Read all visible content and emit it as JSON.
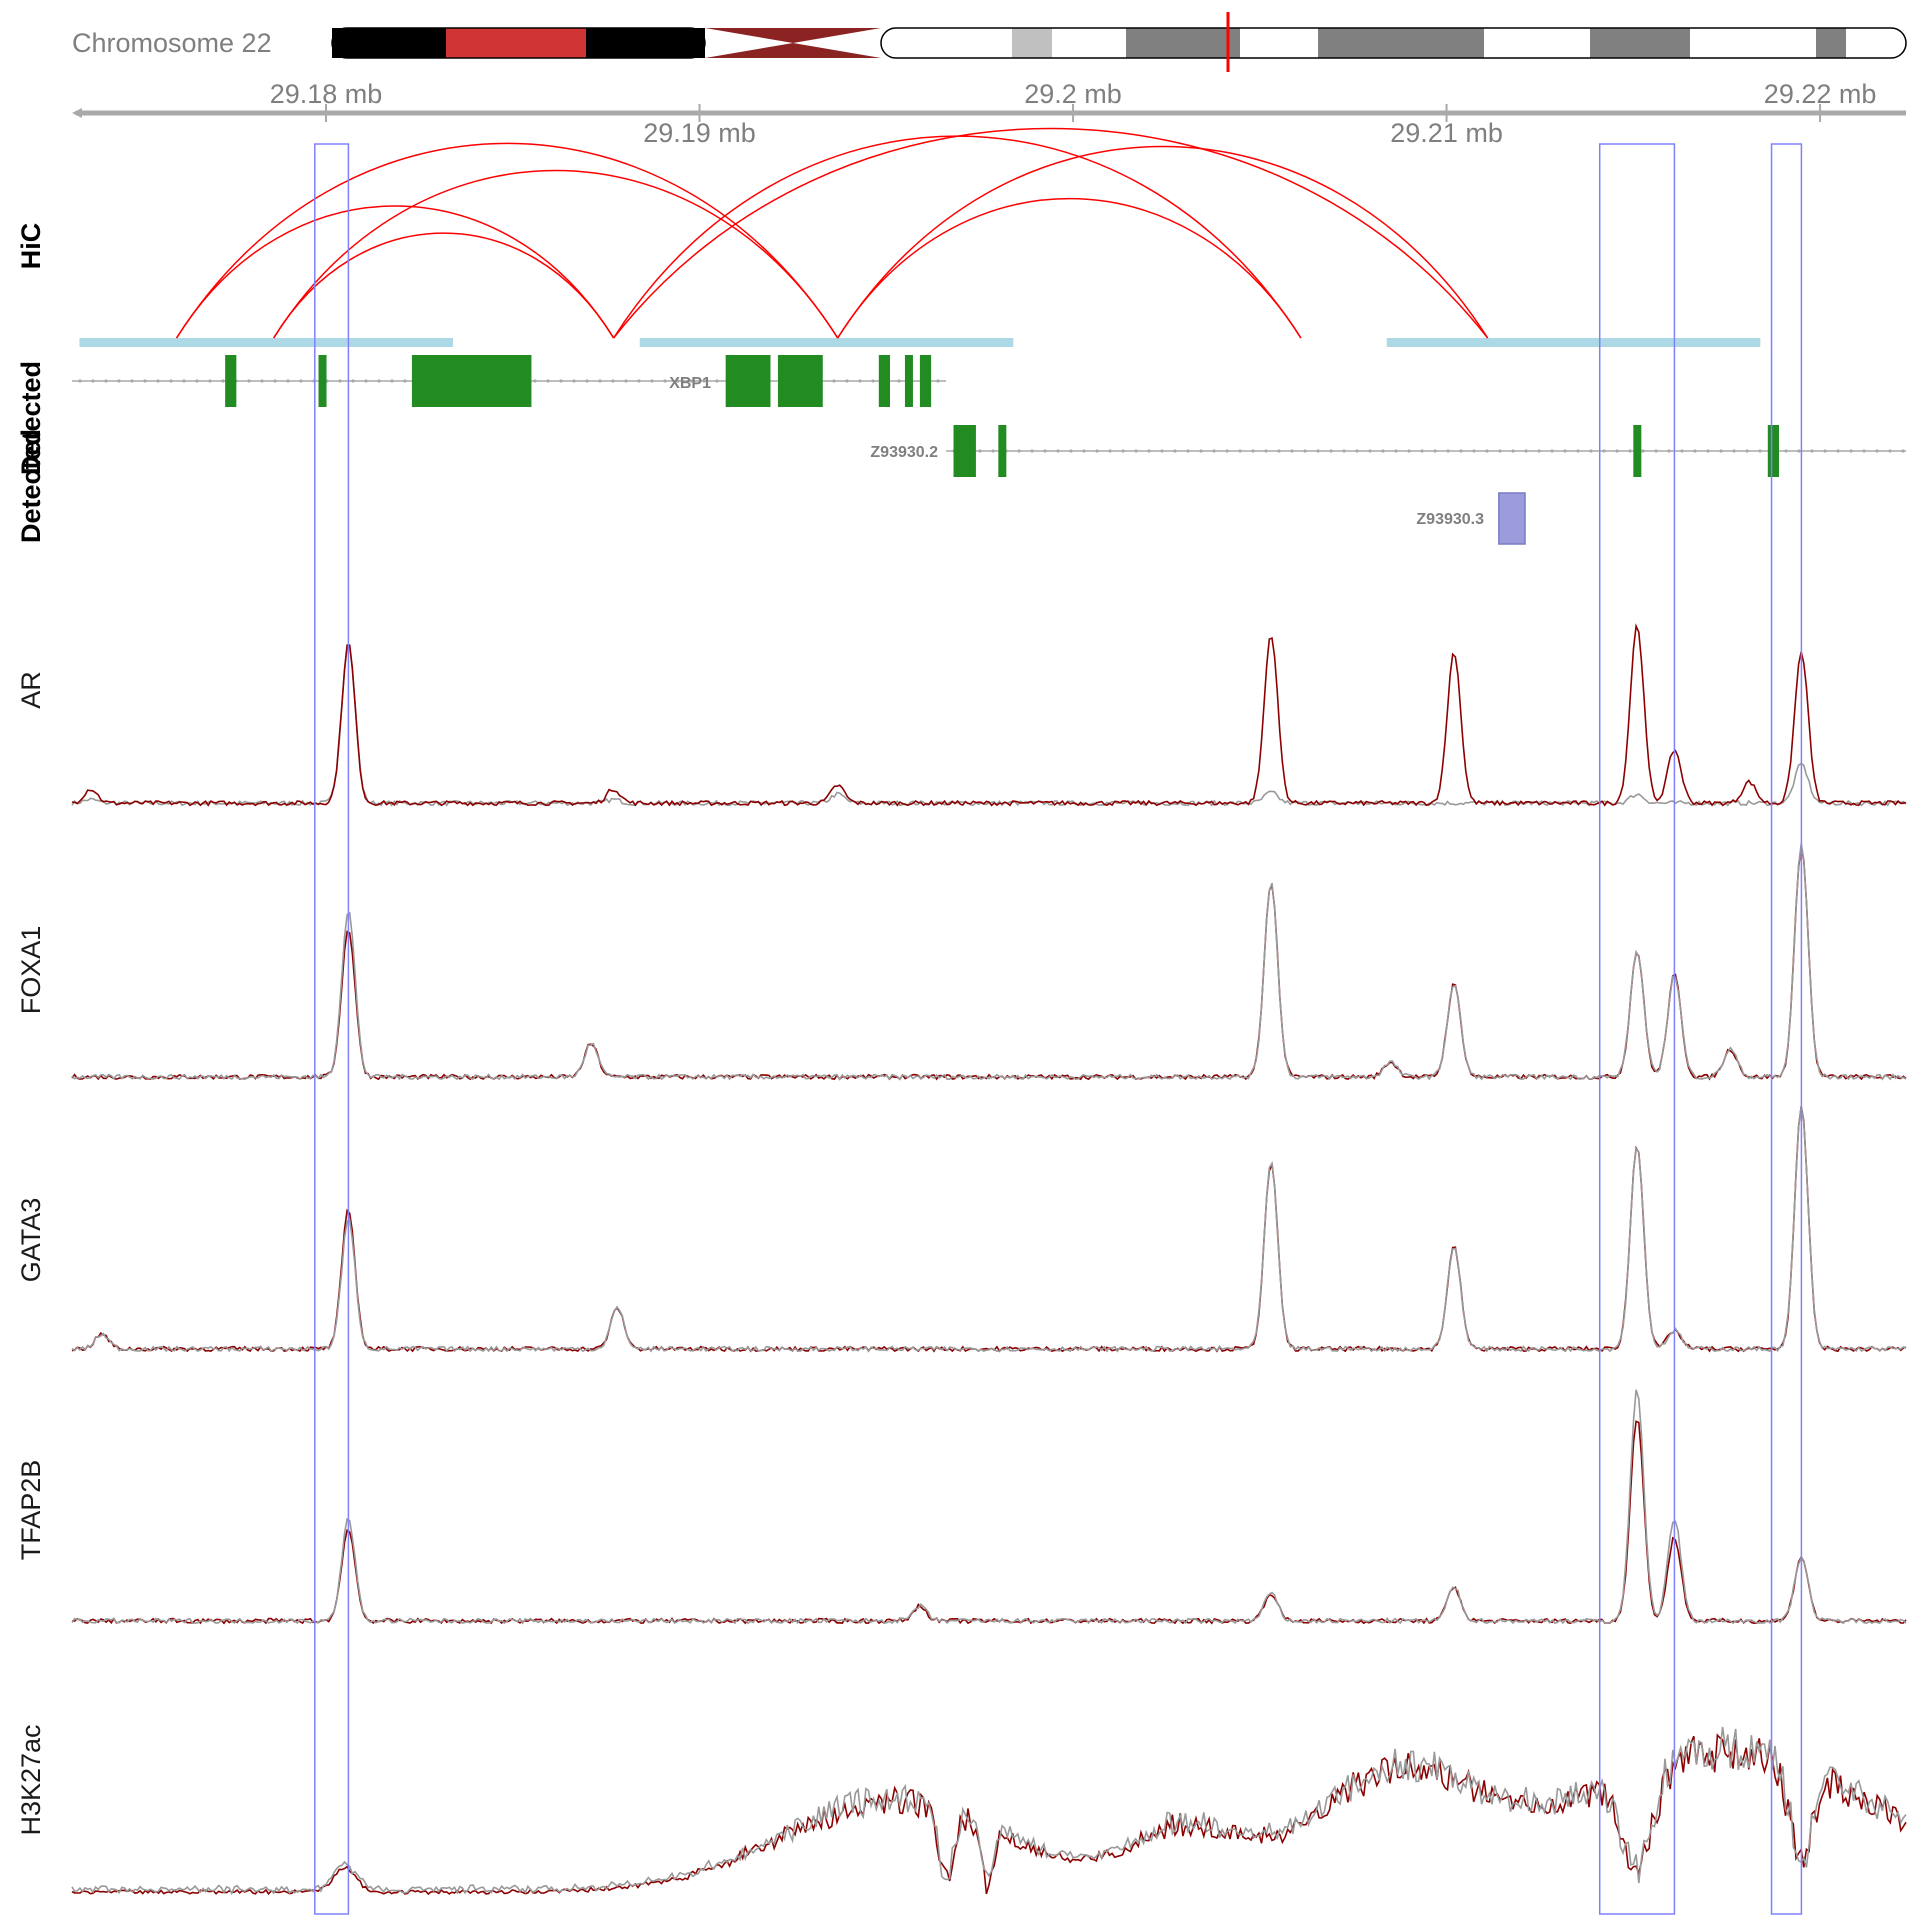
{
  "ideogram": {
    "label": "Chromosome 22",
    "bands": [
      {
        "stain": "gpos100",
        "color": "#000000"
      },
      {
        "stain": "gpos100-red",
        "color": "#d03434"
      },
      {
        "stain": "gpos100",
        "color": "#000000"
      },
      {
        "stain": "acen",
        "color": "#8b2323"
      },
      {
        "stain": "gneg",
        "color": "#ffffff"
      },
      {
        "stain": "gpos25",
        "color": "#c0c0c0"
      },
      {
        "stain": "gneg",
        "color": "#ffffff"
      },
      {
        "stain": "gpos50",
        "color": "#808080"
      },
      {
        "stain": "gneg",
        "color": "#ffffff"
      },
      {
        "stain": "gpos50",
        "color": "#808080"
      },
      {
        "stain": "gneg",
        "color": "#ffffff"
      },
      {
        "stain": "gpos50",
        "color": "#808080"
      },
      {
        "stain": "gneg",
        "color": "#ffffff"
      },
      {
        "stain": "gpos50",
        "color": "#808080"
      },
      {
        "stain": "gneg",
        "color": "#ffffff"
      }
    ],
    "marker_color": "#ff0000"
  },
  "genome_axis": {
    "range_mb": [
      29.1732,
      29.2223
    ],
    "top_ticks": [
      {
        "value": 29.18,
        "label": "29.18 mb"
      },
      {
        "value": 29.2,
        "label": "29.2 mb"
      },
      {
        "value": 29.22,
        "label": "29.22 mb"
      }
    ],
    "bottom_ticks": [
      {
        "value": 29.19,
        "label": "29.19 mb"
      },
      {
        "value": 29.21,
        "label": "29.21 mb"
      }
    ]
  },
  "hic": {
    "label": "HiC",
    "arc_color": "#ff0000",
    "anchor_color": "#add8e6",
    "anchor_regions_mb": [
      [
        29.1734,
        29.1834
      ],
      [
        29.1884,
        29.1984
      ],
      [
        29.2084,
        29.2184
      ]
    ],
    "links_mb": [
      [
        29.176,
        29.1937
      ],
      [
        29.176,
        29.1877
      ],
      [
        29.1786,
        29.1937
      ],
      [
        29.1786,
        29.1877
      ],
      [
        29.1877,
        29.2061
      ],
      [
        29.1877,
        29.2111
      ],
      [
        29.1937,
        29.2061
      ],
      [
        29.1937,
        29.2111
      ]
    ]
  },
  "genes": {
    "track_label": "Detected",
    "track_label_2": "Detected",
    "exon_color": "#228b22",
    "intron_color": "#a9a9a9",
    "transcripts": [
      {
        "name": "",
        "label_shown": false,
        "start": 29.1732,
        "end": 29.1966,
        "exons": [
          [
            29.1773,
            29.1776
          ],
          [
            29.1798,
            29.18
          ],
          [
            29.1823,
            29.1855
          ]
        ]
      },
      {
        "name": "XBP1",
        "label_shown": true,
        "start": 29.1732,
        "end": 29.1966,
        "exons": [
          [
            29.1907,
            29.1919
          ],
          [
            29.1921,
            29.1933
          ],
          [
            29.1948,
            29.1951
          ],
          [
            29.1955,
            29.1957
          ],
          [
            29.1959,
            29.1962
          ]
        ]
      },
      {
        "name": "Z93930.2",
        "label_shown": true,
        "start": 29.1966,
        "end": 29.2223,
        "exons": [
          [
            29.1968,
            29.1974
          ],
          [
            29.198,
            29.1982
          ],
          [
            29.215,
            29.2152
          ],
          [
            29.2186,
            29.2189
          ]
        ]
      }
    ],
    "features": [
      {
        "name": "Z93930.3",
        "start": 29.2114,
        "end": 29.2121,
        "color": "#9c9cdd"
      }
    ]
  },
  "coverage_tracks": [
    {
      "name": "AR",
      "ymax": 1.0,
      "peaks_mb": [
        [
          29.1806,
          0.9,
          0.9
        ],
        [
          29.2053,
          0.95,
          0.06
        ],
        [
          29.2102,
          0.85,
          0.0
        ],
        [
          29.2151,
          1.0,
          0.05
        ],
        [
          29.2161,
          0.3,
          0.0
        ],
        [
          29.2195,
          0.85,
          0.22
        ],
        [
          29.2181,
          0.12,
          0.0
        ],
        [
          29.1937,
          0.1,
          0.05
        ],
        [
          29.1877,
          0.08,
          0.02
        ],
        [
          29.1737,
          0.08,
          0.02
        ]
      ]
    },
    {
      "name": "FOXA1",
      "ymax": 1.0,
      "peaks_mb": [
        [
          29.1806,
          0.8,
          0.9
        ],
        [
          29.1871,
          0.18,
          0.18
        ],
        [
          29.2053,
          1.05,
          1.05
        ],
        [
          29.2102,
          0.5,
          0.5
        ],
        [
          29.2151,
          0.68,
          0.68
        ],
        [
          29.2161,
          0.55,
          0.55
        ],
        [
          29.2195,
          1.25,
          1.25
        ],
        [
          29.2176,
          0.15,
          0.15
        ],
        [
          29.2085,
          0.08,
          0.08
        ]
      ]
    },
    {
      "name": "GATA3",
      "ymax": 1.0,
      "peaks_mb": [
        [
          29.1806,
          0.75,
          0.7
        ],
        [
          29.1878,
          0.22,
          0.22
        ],
        [
          29.2053,
          1.0,
          1.0
        ],
        [
          29.2102,
          0.55,
          0.55
        ],
        [
          29.2151,
          1.1,
          1.1
        ],
        [
          29.2161,
          0.1,
          0.1
        ],
        [
          29.2195,
          1.3,
          1.3
        ],
        [
          29.174,
          0.08,
          0.08
        ]
      ]
    },
    {
      "name": "TFAP2B",
      "ymax": 1.0,
      "peaks_mb": [
        [
          29.1806,
          0.5,
          0.55
        ],
        [
          29.2053,
          0.15,
          0.15
        ],
        [
          29.2102,
          0.18,
          0.18
        ],
        [
          29.2151,
          1.1,
          1.25
        ],
        [
          29.2161,
          0.45,
          0.55
        ],
        [
          29.2195,
          0.35,
          0.35
        ],
        [
          29.1959,
          0.08,
          0.08
        ]
      ]
    },
    {
      "name": "H3K27ac",
      "ymax": 1.0,
      "profile": "broad"
    }
  ],
  "highlights_mb": [
    [
      29.1797,
      29.1806
    ],
    [
      29.2141,
      29.2161
    ],
    [
      29.2187,
      29.2195
    ]
  ],
  "colors": {
    "signal_primary": "#8b0000",
    "signal_secondary": "#999999",
    "highlight_box": "#8080ff",
    "axis": "#a9a9a9"
  }
}
